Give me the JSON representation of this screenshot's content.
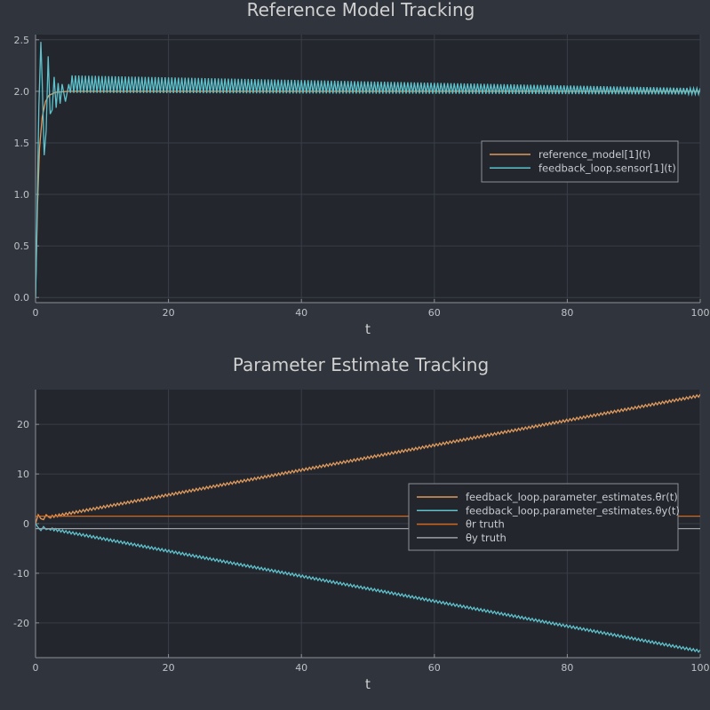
{
  "colors": {
    "background": "#30343c",
    "plot_area": "#23262d",
    "grid": "#3a3e46",
    "axis": "#8c9096",
    "series_orange": "#e09a5c",
    "series_teal": "#5ec2cc",
    "series_dark_orange": "#d2691e",
    "series_gray": "#9aa0a6"
  },
  "chart_data": [
    {
      "type": "line",
      "title": "Reference Model Tracking",
      "xlabel": "t",
      "ylabel": "",
      "xlim": [
        0,
        100
      ],
      "ylim": [
        -0.05,
        2.55
      ],
      "xticks": [
        0,
        20,
        40,
        60,
        80,
        100
      ],
      "xtick_labels": [
        "0",
        "20",
        "40",
        "60",
        "80",
        "100"
      ],
      "yticks": [
        0.0,
        0.5,
        1.0,
        1.5,
        2.0,
        2.5
      ],
      "ytick_labels": [
        "0.0",
        "0.5",
        "1.0",
        "1.5",
        "2.0",
        "2.5"
      ],
      "grid": true,
      "legend_position": "right",
      "series": [
        {
          "name": "reference_model[1](t)",
          "color": "#e09a5c",
          "points": [
            [
              0,
              0.0
            ],
            [
              0.3,
              0.9
            ],
            [
              0.6,
              1.45
            ],
            [
              1.0,
              1.75
            ],
            [
              1.5,
              1.9
            ],
            [
              2.0,
              1.96
            ],
            [
              3.0,
              1.99
            ],
            [
              5.0,
              2.0
            ],
            [
              100,
              2.0
            ]
          ]
        },
        {
          "name": "feedback_loop.sensor[1](t)",
          "color": "#5ec2cc",
          "points": [
            [
              0,
              0.0
            ],
            [
              0.2,
              0.7
            ],
            [
              0.5,
              1.85
            ],
            [
              0.8,
              2.48
            ],
            [
              1.0,
              2.1
            ],
            [
              1.3,
              1.38
            ],
            [
              1.6,
              1.62
            ],
            [
              1.9,
              2.34
            ],
            [
              2.2,
              1.78
            ],
            [
              2.5,
              1.82
            ],
            [
              2.8,
              2.14
            ],
            [
              3.1,
              1.84
            ],
            [
              3.4,
              2.08
            ],
            [
              3.7,
              1.88
            ],
            [
              4.0,
              2.07
            ],
            [
              4.5,
              1.9
            ],
            [
              5.0,
              2.07
            ],
            [
              100,
              2.0
            ]
          ],
          "oscillation": {
            "start": 5,
            "end": 100,
            "amplitude_start": 0.085,
            "amplitude_end": 0.03,
            "cycles": 190
          }
        }
      ]
    },
    {
      "type": "line",
      "title": "Parameter Estimate Tracking",
      "xlabel": "t",
      "ylabel": "",
      "xlim": [
        0,
        100
      ],
      "ylim": [
        -27,
        27
      ],
      "xticks": [
        0,
        20,
        40,
        60,
        80,
        100
      ],
      "xtick_labels": [
        "0",
        "20",
        "40",
        "60",
        "80",
        "100"
      ],
      "yticks": [
        -20,
        -10,
        0,
        10,
        20
      ],
      "ytick_labels": [
        "-20",
        "-10",
        "0",
        "10",
        "20"
      ],
      "grid": true,
      "legend_position": "right",
      "series": [
        {
          "name": "feedback_loop.parameter_estimates.θr(t)",
          "color": "#e09a5c",
          "points": [
            [
              0,
              0.0
            ],
            [
              0.4,
              1.8
            ],
            [
              0.8,
              1.0
            ],
            [
              1.2,
              0.8
            ],
            [
              1.6,
              1.8
            ],
            [
              2.0,
              1.3
            ],
            [
              100,
              25.8
            ]
          ],
          "oscillation": {
            "start": 2,
            "end": 100,
            "amplitude_start": 0.25,
            "amplitude_end": 0.25,
            "cycles": 190
          }
        },
        {
          "name": "feedback_loop.parameter_estimates.θy(t)",
          "color": "#5ec2cc",
          "points": [
            [
              0,
              0.0
            ],
            [
              0.4,
              -0.8
            ],
            [
              0.8,
              -1.4
            ],
            [
              1.2,
              -0.6
            ],
            [
              1.6,
              -1.2
            ],
            [
              2.0,
              -1.0
            ],
            [
              100,
              -25.7
            ]
          ],
          "oscillation": {
            "start": 2,
            "end": 100,
            "amplitude_start": 0.25,
            "amplitude_end": 0.25,
            "cycles": 190
          }
        },
        {
          "name": "θr truth",
          "color": "#d2691e",
          "points": [
            [
              0,
              1.5
            ],
            [
              100,
              1.5
            ]
          ]
        },
        {
          "name": "θy truth",
          "color": "#9aa0a6",
          "points": [
            [
              0,
              -1.0
            ],
            [
              100,
              -1.0
            ]
          ]
        }
      ]
    }
  ]
}
